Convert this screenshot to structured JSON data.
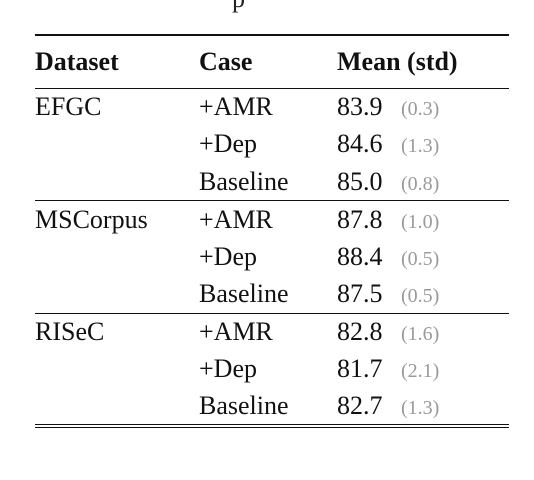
{
  "clipped_caption": "p",
  "headers": {
    "dataset": "Dataset",
    "case": "Case",
    "mean_std": "Mean (std)"
  },
  "groups": [
    {
      "dataset": "EFGC",
      "rows": [
        {
          "case": "+AMR",
          "mean": "83.9",
          "std": "(0.3)"
        },
        {
          "case": "+Dep",
          "mean": "84.6",
          "std": "(1.3)"
        },
        {
          "case": "Baseline",
          "mean": "85.0",
          "std": "(0.8)"
        }
      ]
    },
    {
      "dataset": "MSCorpus",
      "rows": [
        {
          "case": "+AMR",
          "mean": "87.8",
          "std": "(1.0)"
        },
        {
          "case": "+Dep",
          "mean": "88.4",
          "std": "(0.5)"
        },
        {
          "case": "Baseline",
          "mean": "87.5",
          "std": "(0.5)"
        }
      ]
    },
    {
      "dataset": "RISeC",
      "rows": [
        {
          "case": "+AMR",
          "mean": "82.8",
          "std": "(1.6)"
        },
        {
          "case": "+Dep",
          "mean": "81.7",
          "std": "(2.1)"
        },
        {
          "case": "Baseline",
          "mean": "82.7",
          "std": "(1.3)"
        }
      ]
    }
  ],
  "colors": {
    "text": "#111111",
    "std_text": "#9a9a9a",
    "rule": "#111111"
  }
}
